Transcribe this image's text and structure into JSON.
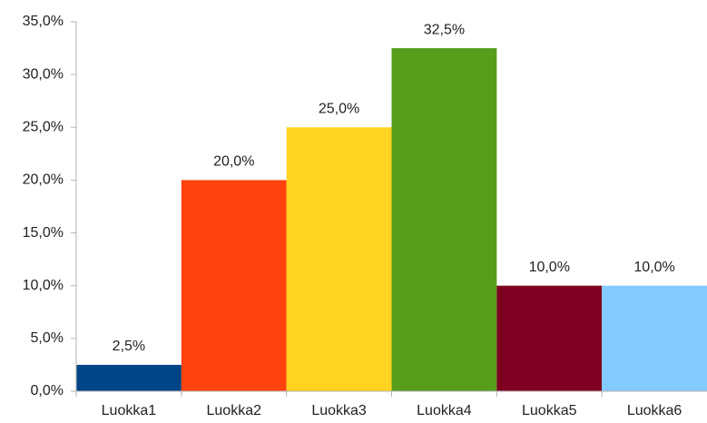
{
  "chart_data": {
    "type": "bar",
    "categories": [
      "Luokka1",
      "Luokka2",
      "Luokka3",
      "Luokka4",
      "Luokka5",
      "Luokka6"
    ],
    "values": [
      2.5,
      20,
      25,
      32.5,
      10,
      10
    ],
    "value_labels": [
      "2,5%",
      "20,0%",
      "25,0%",
      "32,5%",
      "10,0%",
      "10,0%"
    ],
    "colors": [
      "#004586",
      "#ff420e",
      "#ffd320",
      "#579d1c",
      "#7e0021",
      "#83caff"
    ],
    "ylim": [
      0,
      35
    ],
    "yticks": [
      {
        "value": 0,
        "label": "0,0%"
      },
      {
        "value": 5,
        "label": "5,0%"
      },
      {
        "value": 10,
        "label": "10,0%"
      },
      {
        "value": 15,
        "label": "15,0%"
      },
      {
        "value": 20,
        "label": "20,0%"
      },
      {
        "value": 25,
        "label": "25,0%"
      },
      {
        "value": 30,
        "label": "30,0%"
      },
      {
        "value": 35,
        "label": "35,0%"
      }
    ],
    "grid": false
  }
}
